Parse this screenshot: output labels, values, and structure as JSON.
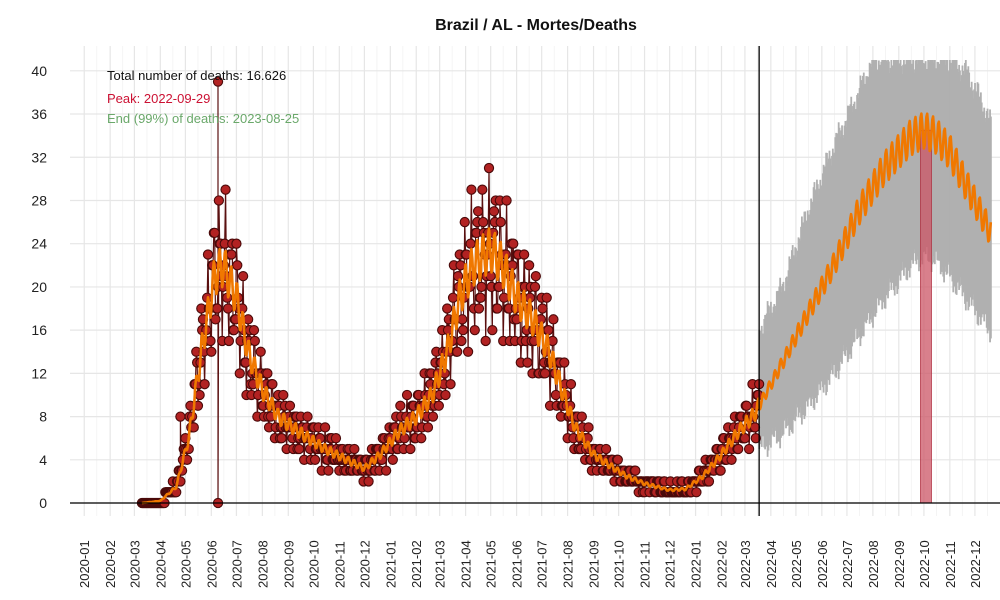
{
  "chart_data": {
    "type": "line",
    "title": "Brazil / AL - Mortes/Deaths",
    "xlabel": "",
    "ylabel": "",
    "x_range": [
      "2019-12-15",
      "2022-12-31"
    ],
    "ylim": [
      -1.2,
      41.0
    ],
    "y_ticks": [
      0,
      4,
      8,
      12,
      16,
      20,
      24,
      28,
      32,
      36,
      40
    ],
    "x_ticks": [
      "2020-01",
      "2020-02",
      "2020-03",
      "2020-04",
      "2020-05",
      "2020-06",
      "2020-07",
      "2020-08",
      "2020-09",
      "2020-10",
      "2020-11",
      "2020-12",
      "2021-01",
      "2021-02",
      "2021-03",
      "2021-04",
      "2021-05",
      "2021-06",
      "2021-07",
      "2021-08",
      "2021-09",
      "2021-10",
      "2021-11",
      "2021-12",
      "2022-01",
      "2022-02",
      "2022-03",
      "2022-04",
      "2022-05",
      "2022-06",
      "2022-07",
      "2022-08",
      "2022-09",
      "2022-10",
      "2022-11",
      "2022-12"
    ],
    "grid": true,
    "annotations": {
      "total": "Total number of deaths: 16.626",
      "peak": "Peak: 2022-09-29",
      "end": "End (99%) of deaths: 2023-08-25"
    },
    "forecast_start": "2022-03-18",
    "peak_band": {
      "start": "2022-09-27",
      "end": "2022-10-10",
      "top": 34.5
    },
    "colors": {
      "observed_point": "#b22222",
      "observed_point_stroke": "#4a0a0a",
      "observed_line": "#5a1010",
      "trend": "#f07800",
      "forecast_band": "#b0b0b0",
      "peak_band": "#cc5566",
      "peak_text": "#cc1133",
      "end_text": "#6aa86a",
      "grid": "#e6e6e6"
    },
    "observed_smooth": [
      [
        "2020-03-10",
        0
      ],
      [
        "2020-04-01",
        0.2
      ],
      [
        "2020-04-20",
        1.5
      ],
      [
        "2020-05-05",
        6
      ],
      [
        "2020-05-20",
        14
      ],
      [
        "2020-06-05",
        21
      ],
      [
        "2020-06-15",
        22
      ],
      [
        "2020-07-01",
        19
      ],
      [
        "2020-07-15",
        14
      ],
      [
        "2020-08-01",
        10.5
      ],
      [
        "2020-08-20",
        8
      ],
      [
        "2020-09-15",
        6.5
      ],
      [
        "2020-10-15",
        5
      ],
      [
        "2020-11-15",
        3.8
      ],
      [
        "2020-12-01",
        3.2
      ],
      [
        "2020-12-20",
        4.5
      ],
      [
        "2021-01-10",
        6.5
      ],
      [
        "2021-02-01",
        8
      ],
      [
        "2021-02-20",
        10
      ],
      [
        "2021-03-10",
        14
      ],
      [
        "2021-03-25",
        19
      ],
      [
        "2021-04-10",
        22
      ],
      [
        "2021-05-01",
        23.5
      ],
      [
        "2021-05-15",
        22
      ],
      [
        "2021-06-01",
        19
      ],
      [
        "2021-06-20",
        17
      ],
      [
        "2021-07-10",
        14
      ],
      [
        "2021-07-25",
        10.5
      ],
      [
        "2021-08-10",
        7
      ],
      [
        "2021-09-01",
        4.5
      ],
      [
        "2021-09-20",
        3.5
      ],
      [
        "2021-10-10",
        2.5
      ],
      [
        "2021-11-01",
        1.8
      ],
      [
        "2021-12-01",
        1.2
      ],
      [
        "2021-12-20",
        1.3
      ],
      [
        "2022-01-10",
        2.5
      ],
      [
        "2022-02-01",
        4.5
      ],
      [
        "2022-02-20",
        6.5
      ],
      [
        "2022-03-10",
        8
      ],
      [
        "2022-03-18",
        9
      ]
    ],
    "forecast_trend": [
      [
        "2022-03-18",
        9
      ],
      [
        "2022-04-15",
        13
      ],
      [
        "2022-05-15",
        17.5
      ],
      [
        "2022-06-15",
        22
      ],
      [
        "2022-07-15",
        27
      ],
      [
        "2022-08-15",
        31
      ],
      [
        "2022-09-15",
        33.8
      ],
      [
        "2022-10-01",
        34.5
      ],
      [
        "2022-10-15",
        34
      ],
      [
        "2022-11-01",
        32.5
      ],
      [
        "2022-11-20",
        29.5
      ],
      [
        "2022-12-10",
        26.5
      ],
      [
        "2022-12-20",
        25
      ]
    ],
    "forecast_band_edges": [
      [
        "2022-03-18",
        5,
        16
      ],
      [
        "2022-04-15",
        6.5,
        20
      ],
      [
        "2022-05-15",
        9,
        27
      ],
      [
        "2022-06-15",
        12,
        33
      ],
      [
        "2022-07-15",
        15.5,
        38
      ],
      [
        "2022-08-01",
        17.5,
        41
      ],
      [
        "2022-08-15",
        19,
        41
      ],
      [
        "2022-09-15",
        22,
        41
      ],
      [
        "2022-10-01",
        23,
        41
      ],
      [
        "2022-10-15",
        22.5,
        41
      ],
      [
        "2022-11-01",
        21,
        41
      ],
      [
        "2022-11-20",
        19,
        40
      ],
      [
        "2022-12-10",
        17,
        37
      ],
      [
        "2022-12-20",
        16,
        35
      ]
    ],
    "spikes": [
      {
        "date": "2020-04-25",
        "value": 8
      },
      {
        "date": "2020-06-09",
        "value": 39
      },
      {
        "date": "2020-06-09",
        "value": 0
      }
    ],
    "y_offset_zero_line": 0
  }
}
